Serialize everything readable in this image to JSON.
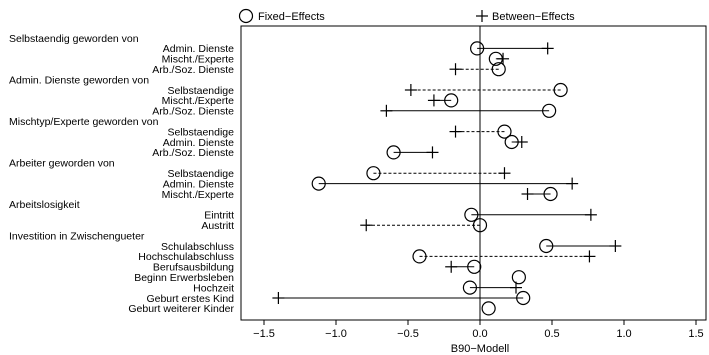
{
  "chart_data": {
    "type": "dot-range",
    "xlabel": "B90−Modell",
    "xlim": [
      -1.6,
      1.55
    ],
    "xticks": [
      -1.5,
      -1.0,
      -0.5,
      0.0,
      0.5,
      1.0,
      1.5
    ],
    "xtick_labels": [
      "−1.5",
      "−1.0",
      "−0.5",
      "0.0",
      "0.5",
      "1.0",
      "1.5"
    ],
    "reference_line": 0,
    "legend": [
      {
        "name": "Fixed−Effects",
        "marker": "circle"
      },
      {
        "name": "Between−Effects",
        "marker": "plus"
      }
    ],
    "rows": [
      {
        "kind": "group",
        "label": "Selbstaendig geworden von"
      },
      {
        "kind": "item",
        "label": "Admin. Dienste",
        "fe": -0.02,
        "be": 0.47,
        "style": "solid"
      },
      {
        "kind": "item",
        "label": "Mischt./Experte",
        "fe": 0.11,
        "be": 0.16,
        "style": "solid"
      },
      {
        "kind": "item",
        "label": "Arb./Soz. Dienste",
        "fe": 0.13,
        "be": -0.17,
        "style": "dashed"
      },
      {
        "kind": "group",
        "label": "Admin. Dienste geworden von"
      },
      {
        "kind": "item",
        "label": "Selbstaendige",
        "fe": 0.56,
        "be": -0.48,
        "style": "dashed"
      },
      {
        "kind": "item",
        "label": "Mischt./Experte",
        "fe": -0.2,
        "be": -0.32,
        "style": "solid"
      },
      {
        "kind": "item",
        "label": "Arb./Soz. Dienste",
        "fe": 0.48,
        "be": -0.65,
        "style": "solid"
      },
      {
        "kind": "group",
        "label": "Mischtyp/Experte geworden von"
      },
      {
        "kind": "item",
        "label": "Selbstaendige",
        "fe": 0.17,
        "be": -0.17,
        "style": "dashed"
      },
      {
        "kind": "item",
        "label": "Admin. Dienste",
        "fe": 0.22,
        "be": 0.29,
        "style": "solid"
      },
      {
        "kind": "item",
        "label": "Arb./Soz. Dienste",
        "fe": -0.6,
        "be": -0.33,
        "style": "solid"
      },
      {
        "kind": "group",
        "label": "Arbeiter geworden von"
      },
      {
        "kind": "item",
        "label": "Selbstaendige",
        "fe": -0.74,
        "be": 0.17,
        "style": "dashed"
      },
      {
        "kind": "item",
        "label": "Admin. Dienste",
        "fe": -1.12,
        "be": 0.64,
        "style": "solid"
      },
      {
        "kind": "item",
        "label": "Mischt./Experte",
        "fe": 0.49,
        "be": 0.33,
        "style": "solid"
      },
      {
        "kind": "group",
        "label": "Arbeitslosigkeit"
      },
      {
        "kind": "item",
        "label": "Eintritt",
        "fe": -0.06,
        "be": 0.77,
        "style": "solid"
      },
      {
        "kind": "item",
        "label": "Austritt",
        "fe": 0.0,
        "be": -0.79,
        "style": "dashed"
      },
      {
        "kind": "group",
        "label": "Investition in Zwischengueter"
      },
      {
        "kind": "item",
        "label": "Schulabschluss",
        "fe": 0.46,
        "be": 0.94,
        "style": "solid"
      },
      {
        "kind": "item",
        "label": "Hochschulabschluss",
        "fe": -0.42,
        "be": 0.76,
        "style": "dashed"
      },
      {
        "kind": "item",
        "label": "Berufsausbildung",
        "fe": -0.04,
        "be": -0.2,
        "style": "solid"
      },
      {
        "kind": "item",
        "label": "Beginn Erwerbsleben",
        "fe": 0.27,
        "be": null,
        "style": "none"
      },
      {
        "kind": "item",
        "label": "Hochzeit",
        "fe": -0.07,
        "be": 0.25,
        "style": "solid"
      },
      {
        "kind": "item",
        "label": "Geburt erstes Kind",
        "fe": 0.3,
        "be": -1.4,
        "style": "solid"
      },
      {
        "kind": "item",
        "label": "Geburt weiterer Kinder",
        "fe": 0.06,
        "be": null,
        "style": "none"
      }
    ]
  }
}
